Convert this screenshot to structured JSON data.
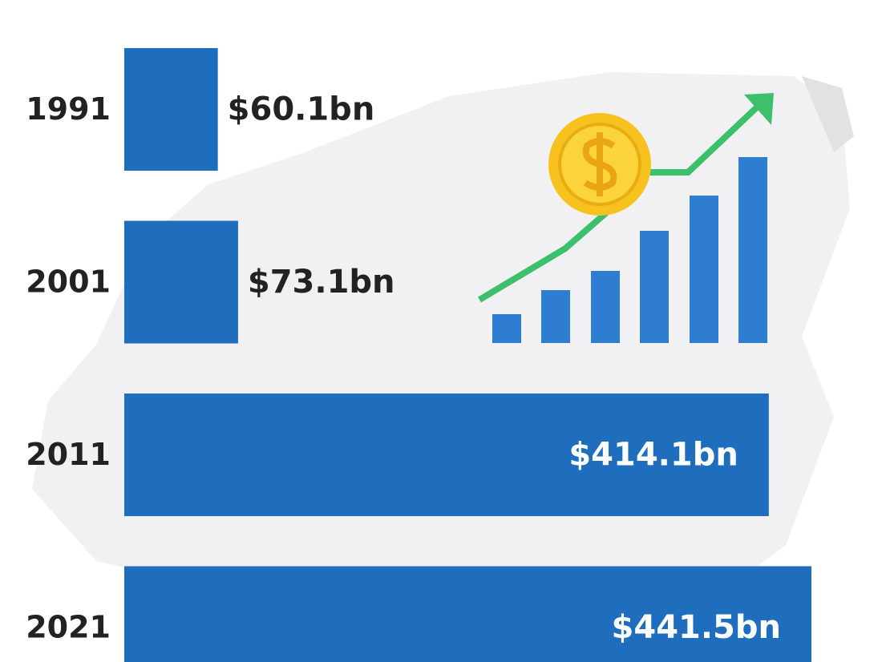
{
  "chart_data": {
    "type": "bar",
    "orientation": "horizontal",
    "categories": [
      "1991",
      "2001",
      "2011",
      "2021"
    ],
    "values": [
      60.1,
      73.1,
      414.1,
      441.5
    ],
    "value_labels": [
      "$60.1bn",
      "$73.1bn",
      "$414.1bn",
      "$441.5bn"
    ],
    "color": "#1f6dbd"
  }
}
